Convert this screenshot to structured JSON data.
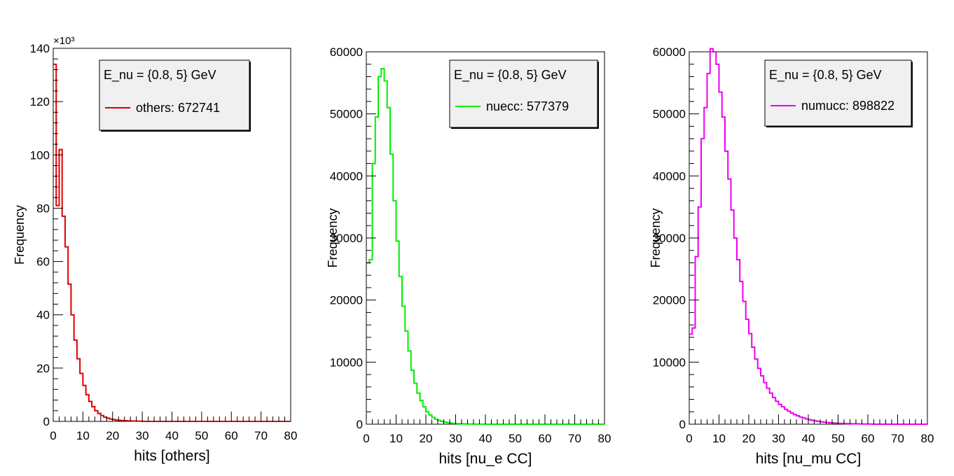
{
  "chart_data": [
    {
      "type": "histogram",
      "xlabel": "hits [others]",
      "ylabel": "Frequency",
      "xlim": [
        0,
        80
      ],
      "ylim": [
        0,
        140
      ],
      "y_exponent_label": "×10³",
      "xticks": [
        0,
        10,
        20,
        30,
        40,
        50,
        60,
        70,
        80
      ],
      "yticks": [
        0,
        20,
        40,
        60,
        80,
        100,
        120,
        140
      ],
      "legend": {
        "header": "E_nu = {0.8, 5} GeV",
        "entry": "others: 672741",
        "placement": "top-right"
      },
      "color": "#dd0000",
      "bin_width": 1,
      "series": [
        {
          "name": "others",
          "values": [
            134,
            81,
            102,
            77,
            65.5,
            51.5,
            40,
            30.5,
            23.5,
            18,
            13.5,
            10,
            7.5,
            5.5,
            4,
            3,
            2.2,
            1.6,
            1.2,
            0.9,
            0.7,
            0.5,
            0.4,
            0.3,
            0.25,
            0.2,
            0.15,
            0.12,
            0.1,
            0.1
          ]
        }
      ]
    },
    {
      "type": "histogram",
      "xlabel": "hits [nu_e CC]",
      "ylabel": "Frequency",
      "xlim": [
        0,
        80
      ],
      "ylim": [
        0,
        60000
      ],
      "xticks": [
        0,
        10,
        20,
        30,
        40,
        50,
        60,
        70,
        80
      ],
      "yticks": [
        0,
        10000,
        20000,
        30000,
        40000,
        50000,
        60000
      ],
      "legend": {
        "header": "E_nu = {0.8, 5} GeV",
        "entry": "nuecc: 577379",
        "placement": "top-right"
      },
      "color": "#00ee00",
      "bin_width": 1,
      "series": [
        {
          "name": "nuecc",
          "values": [
            26000,
            26500,
            42000,
            49500,
            56000,
            57300,
            55300,
            51000,
            43500,
            36000,
            29500,
            23800,
            19000,
            15000,
            11800,
            8700,
            6600,
            5000,
            3800,
            2800,
            2000,
            1500,
            1100,
            800,
            600,
            450,
            330,
            250,
            180,
            130,
            100,
            80,
            60,
            45,
            35,
            25,
            20,
            15,
            10,
            8
          ]
        }
      ]
    },
    {
      "type": "histogram",
      "xlabel": "hits [nu_mu CC]",
      "ylabel": "Frequency",
      "xlim": [
        0,
        80
      ],
      "ylim": [
        0,
        60000
      ],
      "xticks": [
        0,
        10,
        20,
        30,
        40,
        50,
        60,
        70,
        80
      ],
      "yticks": [
        0,
        10000,
        20000,
        30000,
        40000,
        50000,
        60000
      ],
      "legend": {
        "header": "E_nu = {0.8, 5} GeV",
        "entry": "numucc: 898822",
        "placement": "top-right"
      },
      "color": "#ee00ee",
      "bin_width": 1,
      "series": [
        {
          "name": "numucc",
          "values": [
            14500,
            15500,
            27000,
            35000,
            46000,
            51000,
            56500,
            60500,
            60000,
            58000,
            53500,
            49500,
            44000,
            39500,
            34500,
            30000,
            26500,
            23000,
            19800,
            16900,
            14600,
            12400,
            10500,
            9000,
            7800,
            6700,
            5800,
            5000,
            4300,
            3700,
            3200,
            2800,
            2400,
            2100,
            1800,
            1550,
            1350,
            1150,
            1000,
            850,
            720,
            620,
            530,
            450,
            380,
            320,
            270,
            230,
            200,
            170,
            140,
            120,
            100,
            85,
            70,
            60,
            50,
            40,
            35,
            30,
            25,
            20
          ]
        }
      ]
    }
  ]
}
